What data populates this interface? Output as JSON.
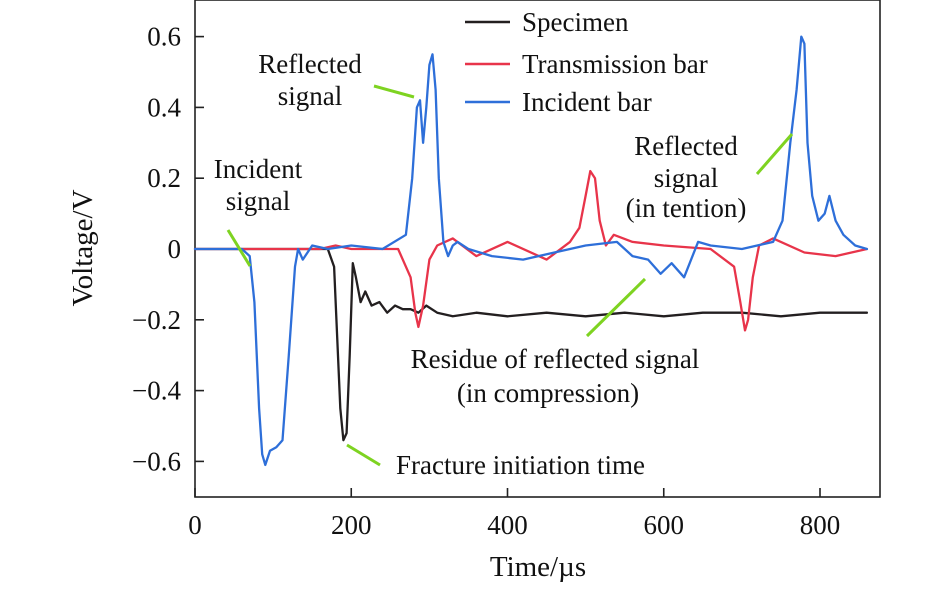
{
  "chart_data": {
    "type": "line",
    "xlabel": "Time/µs",
    "ylabel": "Voltage/V",
    "xlim": [
      0,
      860
    ],
    "ylim": [
      -0.7,
      0.7
    ],
    "xticks": [
      0,
      200,
      400,
      600,
      800
    ],
    "yticks": [
      0.6,
      0.4,
      0.2,
      0,
      -0.2,
      -0.4,
      -0.6
    ],
    "ytick_labels": [
      "0.6",
      "0.4",
      "0.2",
      "0",
      "−0.2",
      "−0.4",
      "−0.6"
    ],
    "grid": false,
    "legend": "top-center",
    "series": [
      {
        "name": "Specimen",
        "color": "#231f20",
        "x": [
          0,
          150,
          170,
          178,
          182,
          186,
          190,
          194,
          198,
          202,
          206,
          212,
          218,
          226,
          236,
          246,
          256,
          266,
          276,
          286,
          296,
          310,
          330,
          360,
          400,
          450,
          500,
          550,
          600,
          650,
          700,
          750,
          800,
          860
        ],
        "y": [
          0,
          0,
          0,
          -0.05,
          -0.25,
          -0.45,
          -0.54,
          -0.52,
          -0.3,
          -0.04,
          -0.08,
          -0.15,
          -0.12,
          -0.16,
          -0.15,
          -0.18,
          -0.16,
          -0.17,
          -0.17,
          -0.18,
          -0.16,
          -0.18,
          -0.19,
          -0.18,
          -0.19,
          -0.18,
          -0.19,
          -0.18,
          -0.19,
          -0.18,
          -0.18,
          -0.19,
          -0.18,
          -0.18
        ]
      },
      {
        "name": "Transmission bar",
        "color": "#e8344a",
        "x": [
          0,
          160,
          180,
          200,
          260,
          276,
          282,
          286,
          292,
          300,
          310,
          330,
          360,
          400,
          450,
          480,
          492,
          500,
          506,
          512,
          518,
          526,
          536,
          560,
          600,
          660,
          690,
          698,
          704,
          708,
          714,
          722,
          740,
          780,
          820,
          860
        ],
        "y": [
          0,
          0,
          0.01,
          0,
          0,
          -0.08,
          -0.18,
          -0.22,
          -0.16,
          -0.03,
          0.01,
          0.03,
          -0.02,
          0.02,
          -0.03,
          0.02,
          0.06,
          0.15,
          0.22,
          0.2,
          0.08,
          0.01,
          0.04,
          0.02,
          0.01,
          0,
          -0.05,
          -0.15,
          -0.23,
          -0.2,
          -0.08,
          0.01,
          0.03,
          -0.01,
          -0.02,
          0
        ]
      },
      {
        "name": "Incident bar",
        "color": "#2e6fd9",
        "x": [
          0,
          60,
          70,
          76,
          82,
          86,
          90,
          96,
          104,
          112,
          120,
          128,
          132,
          138,
          150,
          170,
          200,
          240,
          270,
          278,
          284,
          288,
          292,
          296,
          300,
          304,
          308,
          312,
          318,
          324,
          330,
          336,
          350,
          380,
          420,
          460,
          500,
          540,
          560,
          580,
          596,
          610,
          626,
          644,
          660,
          700,
          740,
          752,
          762,
          770,
          776,
          780,
          784,
          790,
          798,
          806,
          812,
          820,
          830,
          845,
          860
        ],
        "y": [
          0,
          0,
          -0.02,
          -0.15,
          -0.45,
          -0.58,
          -0.61,
          -0.57,
          -0.56,
          -0.54,
          -0.3,
          -0.05,
          0,
          -0.03,
          0.01,
          0,
          0.01,
          0,
          0.04,
          0.2,
          0.4,
          0.42,
          0.3,
          0.4,
          0.52,
          0.55,
          0.45,
          0.2,
          0.02,
          -0.02,
          0.01,
          0.02,
          0,
          -0.02,
          -0.03,
          -0.01,
          0.01,
          0.02,
          -0.02,
          -0.03,
          -0.07,
          -0.04,
          -0.08,
          0.02,
          0.01,
          0,
          0.02,
          0.08,
          0.3,
          0.45,
          0.6,
          0.58,
          0.3,
          0.15,
          0.08,
          0.1,
          0.15,
          0.08,
          0.04,
          0.01,
          0
        ]
      }
    ],
    "annotations": [
      {
        "id": "reflected",
        "lines": [
          "Reflected",
          "signal"
        ]
      },
      {
        "id": "incident",
        "lines": [
          "Incident",
          "signal"
        ]
      },
      {
        "id": "reflected-tension",
        "lines": [
          "Reflected",
          "signal",
          "(in tention)"
        ]
      },
      {
        "id": "residue",
        "lines": [
          "Residue of reflected signal",
          "(in compression)"
        ]
      },
      {
        "id": "fracture",
        "lines": [
          "Fracture initiation time"
        ]
      }
    ]
  }
}
